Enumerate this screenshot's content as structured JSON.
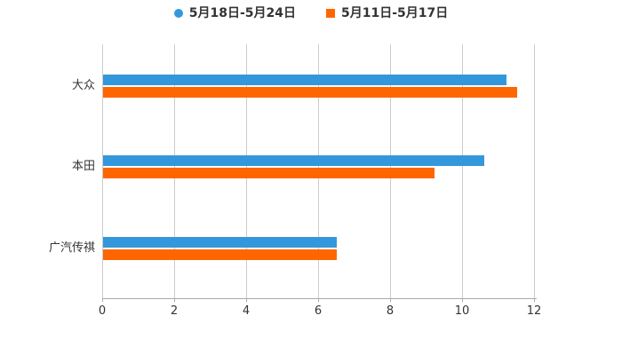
{
  "legend": {
    "items": [
      {
        "label": "5月18日-5月24日",
        "marker": "circle"
      },
      {
        "label": "5月11日-5月17日",
        "marker": "square"
      }
    ]
  },
  "chart_data": {
    "type": "bar",
    "orientation": "horizontal",
    "categories": [
      "大众",
      "本田",
      "广汽传祺"
    ],
    "series": [
      {
        "name": "5月18日-5月24日",
        "color": "#3398DB",
        "values": [
          11.2,
          10.6,
          6.5
        ]
      },
      {
        "name": "5月11日-5月17日",
        "color": "#FF6600",
        "values": [
          11.5,
          9.2,
          6.5
        ]
      }
    ],
    "xlim": [
      0,
      12
    ],
    "xticks": [
      0,
      2,
      4,
      6,
      8,
      10,
      12
    ],
    "grid": true,
    "legend_position": "top"
  },
  "colors": {
    "background": "#FFFFFF",
    "grid": "#CCCCCC",
    "axis": "#AAAAAA",
    "text": "#333333"
  }
}
